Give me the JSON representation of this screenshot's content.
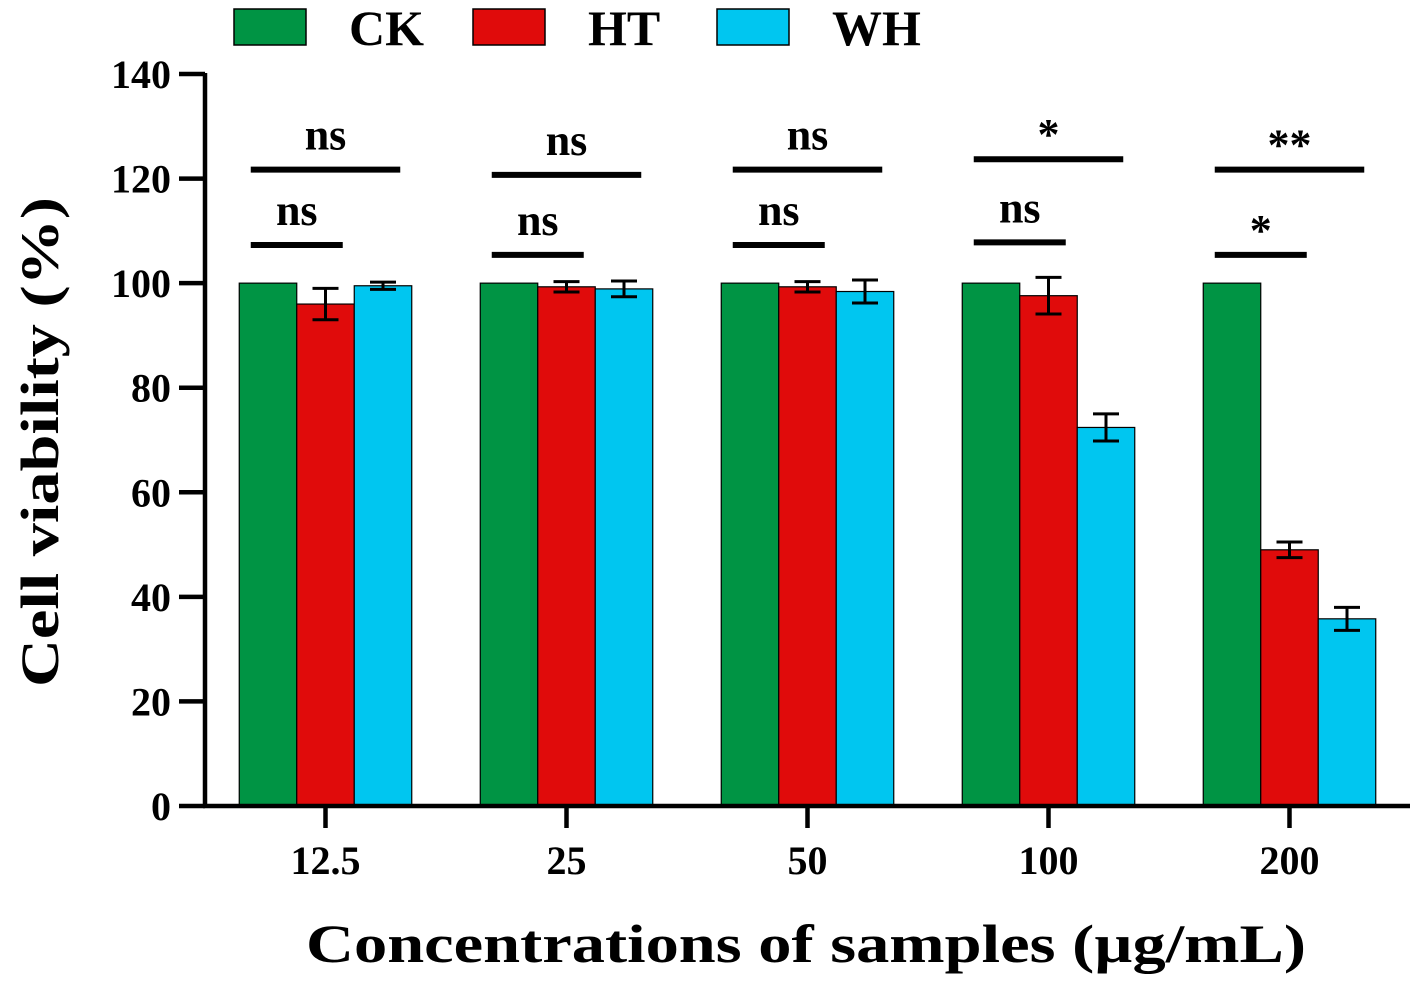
{
  "chart_data": {
    "type": "bar",
    "title": "",
    "xlabel": "Concentrations of samples (µg/mL)",
    "ylabel": "Cell viability (%)",
    "ylim": [
      0,
      140
    ],
    "yticks": [
      0,
      20,
      40,
      60,
      80,
      100,
      120,
      140
    ],
    "ytick_labels": [
      "0",
      "20",
      "40",
      "60",
      "80",
      "100",
      "120",
      "140"
    ],
    "categories": [
      "12.5",
      "25",
      "50",
      "100",
      "200"
    ],
    "legend_position": "top",
    "series": [
      {
        "name": "CK",
        "color": "#009444",
        "values": [
          100,
          100,
          100,
          100,
          100
        ],
        "errors": [
          0,
          0,
          0,
          0,
          0
        ]
      },
      {
        "name": "HT",
        "color": "#e00b0b",
        "values": [
          96,
          99.3,
          99.3,
          97.6,
          49
        ],
        "errors": [
          3,
          1,
          1,
          3.5,
          1.5
        ]
      },
      {
        "name": "WH",
        "color": "#00c6f0",
        "values": [
          99.5,
          98.9,
          98.4,
          72.4,
          35.8
        ],
        "errors": [
          0.7,
          1.5,
          2.2,
          2.6,
          2.2
        ]
      }
    ],
    "significance": [
      {
        "category": "12.5",
        "from": "CK",
        "to": "HT",
        "label": "ns",
        "level": 107.3
      },
      {
        "category": "12.5",
        "from": "CK",
        "to": "WH",
        "label": "ns",
        "level": 121.7
      },
      {
        "category": "25",
        "from": "CK",
        "to": "HT",
        "label": "ns",
        "level": 105.4
      },
      {
        "category": "25",
        "from": "CK",
        "to": "WH",
        "label": "ns",
        "level": 120.7
      },
      {
        "category": "50",
        "from": "CK",
        "to": "HT",
        "label": "ns",
        "level": 107.3
      },
      {
        "category": "50",
        "from": "CK",
        "to": "WH",
        "label": "ns",
        "level": 121.7
      },
      {
        "category": "100",
        "from": "CK",
        "to": "HT",
        "label": "ns",
        "level": 107.8
      },
      {
        "category": "100",
        "from": "CK",
        "to": "WH",
        "label": "*",
        "level": 123.7
      },
      {
        "category": "200",
        "from": "CK",
        "to": "HT",
        "label": "*",
        "level": 105.4
      },
      {
        "category": "200",
        "from": "CK",
        "to": "WH",
        "label": "**",
        "level": 121.7
      }
    ]
  }
}
